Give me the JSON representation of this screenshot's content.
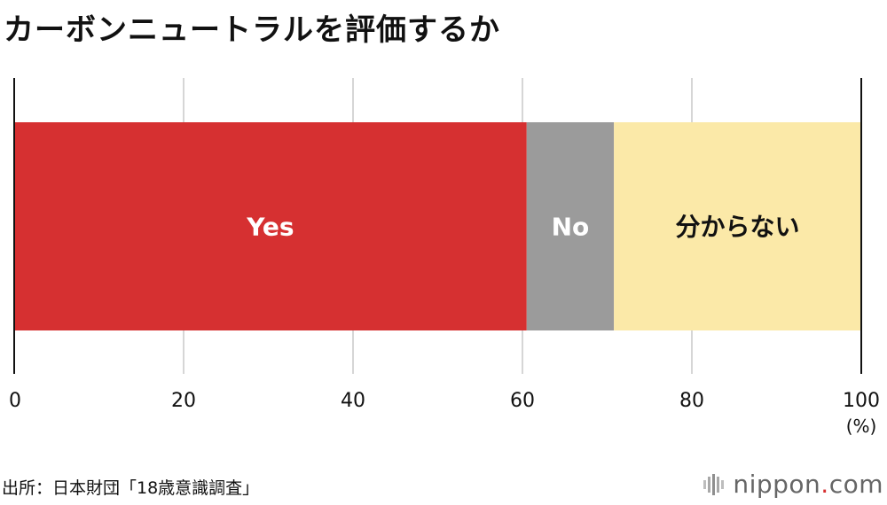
{
  "title": "カーボンニュートラルを評価するか",
  "source": "出所：日本財団「18歳意識調査」",
  "logo": {
    "name": "nippon",
    "dot": ".",
    "tld": "com"
  },
  "chart_data": {
    "type": "bar",
    "orientation": "horizontal-stacked",
    "segments": [
      {
        "label": "Yes",
        "value": 60.5,
        "color": "#d63031",
        "text_color": "#ffffff"
      },
      {
        "label": "No",
        "value": 10.3,
        "color": "#9b9b9b",
        "text_color": "#ffffff"
      },
      {
        "label": "分からない",
        "value": 29.2,
        "color": "#fbe9a8",
        "text_color": "#111111"
      }
    ],
    "xlim": [
      0,
      100
    ],
    "xticks": [
      "0",
      "20",
      "40",
      "60",
      "80",
      "100"
    ],
    "xunit": "(%)",
    "grid": true
  }
}
